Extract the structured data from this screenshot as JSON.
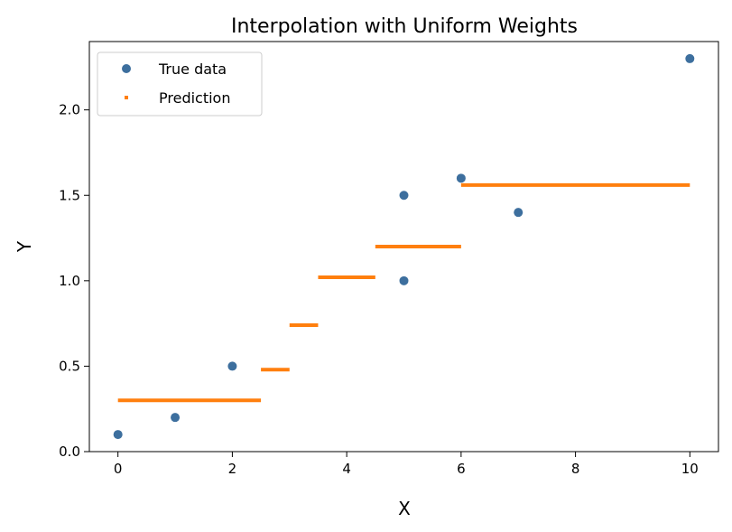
{
  "chart_data": {
    "type": "scatter",
    "title": "Interpolation with Uniform Weights",
    "xlabel": "X",
    "ylabel": "Y",
    "xlim": [
      -0.5,
      10.5
    ],
    "ylim": [
      0.0,
      2.4
    ],
    "xticks": [
      0,
      2,
      4,
      6,
      8,
      10
    ],
    "xtick_labels": [
      "0",
      "2",
      "4",
      "6",
      "8",
      "10"
    ],
    "yticks": [
      0.0,
      0.5,
      1.0,
      1.5,
      2.0
    ],
    "ytick_labels": [
      "0.0",
      "0.5",
      "1.0",
      "1.5",
      "2.0"
    ],
    "grid": false,
    "legend_position": "top-left",
    "series": [
      {
        "name": "True data",
        "kind": "scatter",
        "color": "#3d6f9e",
        "points": [
          {
            "x": 0,
            "y": 0.1
          },
          {
            "x": 1,
            "y": 0.2
          },
          {
            "x": 2,
            "y": 0.5
          },
          {
            "x": 5,
            "y": 1.0
          },
          {
            "x": 5,
            "y": 1.5
          },
          {
            "x": 6,
            "y": 1.6
          },
          {
            "x": 7,
            "y": 1.4
          },
          {
            "x": 10,
            "y": 2.3
          }
        ]
      },
      {
        "name": "Prediction",
        "kind": "step",
        "color": "#ff7f0e",
        "segments": [
          {
            "x0": 0.0,
            "x1": 2.5,
            "y": 0.3
          },
          {
            "x0": 2.5,
            "x1": 3.0,
            "y": 0.48
          },
          {
            "x0": 3.0,
            "x1": 3.5,
            "y": 0.74
          },
          {
            "x0": 3.5,
            "x1": 4.5,
            "y": 1.02
          },
          {
            "x0": 4.5,
            "x1": 6.0,
            "y": 1.2
          },
          {
            "x0": 6.0,
            "x1": 10.0,
            "y": 1.56
          }
        ]
      }
    ]
  }
}
